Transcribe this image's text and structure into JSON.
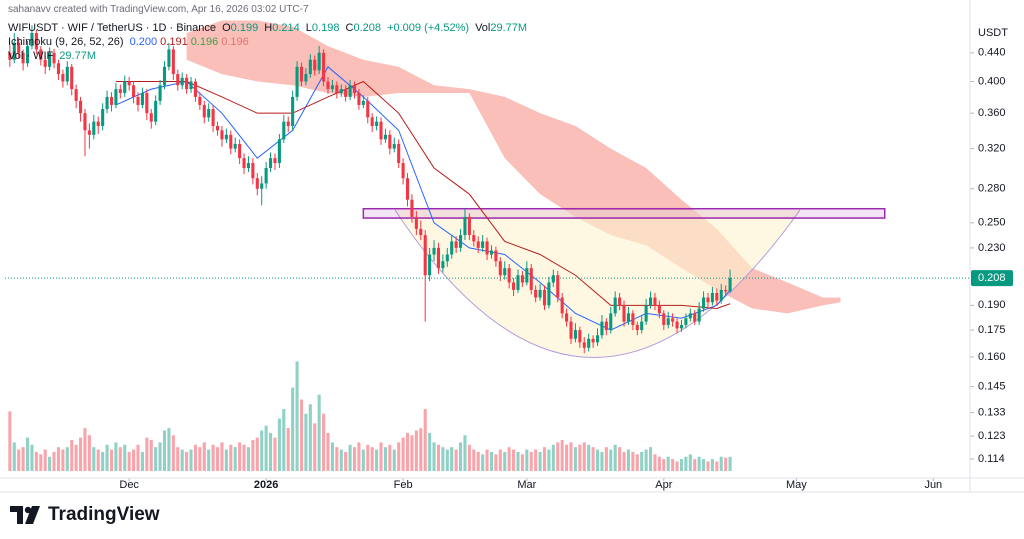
{
  "chart_data": {
    "type": "candlestick",
    "watermark": "sahanavv created with TradingView.com, Apr 16, 2026 03:02 UTC-7",
    "symbol": "WIFUSDT · WIF / TetherUS · 1D · Binance",
    "ohlc_labels": [
      "O",
      "H",
      "L",
      "C"
    ],
    "change": "+0.009 (+4.52%)",
    "vol_short": "Vol",
    "volume_title": "Vol · WIF",
    "volume_label": "29.77M",
    "currency": "USDT",
    "brand": "TradingView",
    "log_scale": true,
    "grid": false,
    "up_color": "#089981",
    "down_color": "#f23645",
    "xlim": [
      -1.1,
      217.3
    ],
    "xticks": [
      {
        "value": 27,
        "label": "Dec"
      },
      {
        "value": 58,
        "label": "2026"
      },
      {
        "value": 89,
        "label": "Feb"
      },
      {
        "value": 117,
        "label": "Mar"
      },
      {
        "value": 148,
        "label": "Apr"
      },
      {
        "value": 178,
        "label": "May"
      },
      {
        "value": 209,
        "label": "Jun"
      }
    ],
    "ylim": [
      0.107,
      0.499
    ],
    "yticks": [
      {
        "value": 0.44,
        "label": "0.440"
      },
      {
        "value": 0.4,
        "label": "0.400"
      },
      {
        "value": 0.36,
        "label": "0.360"
      },
      {
        "value": 0.32,
        "label": "0.320"
      },
      {
        "value": 0.28,
        "label": "0.280"
      },
      {
        "value": 0.25,
        "label": "0.250"
      },
      {
        "value": 0.23,
        "label": "0.230"
      },
      {
        "value": 0.19,
        "label": "0.190"
      },
      0.175,
      {
        "value": 0.16,
        "label": "0.160"
      },
      0.145,
      0.133,
      0.123,
      0.114
    ],
    "volume_lim": [
      0,
      300
    ],
    "candles": [
      [
        0.44,
        0.452,
        0.42,
        0.43
      ],
      [
        0.43,
        0.47,
        0.425,
        0.455
      ],
      [
        0.455,
        0.462,
        0.432,
        0.44
      ],
      [
        0.44,
        0.445,
        0.415,
        0.425
      ],
      [
        0.425,
        0.458,
        0.42,
        0.45
      ],
      [
        0.45,
        0.482,
        0.445,
        0.47
      ],
      [
        0.47,
        0.475,
        0.438,
        0.445
      ],
      [
        0.445,
        0.45,
        0.422,
        0.43
      ],
      [
        0.43,
        0.436,
        0.41,
        0.42
      ],
      [
        0.42,
        0.448,
        0.415,
        0.44
      ],
      [
        0.44,
        0.446,
        0.418,
        0.425
      ],
      [
        0.425,
        0.43,
        0.402,
        0.41
      ],
      [
        0.41,
        0.416,
        0.392,
        0.4
      ],
      [
        0.4,
        0.428,
        0.395,
        0.42
      ],
      [
        0.42,
        0.424,
        0.382,
        0.39
      ],
      [
        0.39,
        0.396,
        0.366,
        0.375
      ],
      [
        0.375,
        0.38,
        0.35,
        0.36
      ],
      [
        0.36,
        0.365,
        0.312,
        0.34
      ],
      [
        0.34,
        0.348,
        0.32,
        0.335
      ],
      [
        0.335,
        0.358,
        0.33,
        0.35
      ],
      [
        0.35,
        0.356,
        0.336,
        0.345
      ],
      [
        0.345,
        0.372,
        0.34,
        0.365
      ],
      [
        0.365,
        0.388,
        0.36,
        0.38
      ],
      [
        0.38,
        0.386,
        0.362,
        0.37
      ],
      [
        0.37,
        0.398,
        0.366,
        0.39
      ],
      [
        0.39,
        0.396,
        0.378,
        0.385
      ],
      [
        0.385,
        0.408,
        0.38,
        0.4
      ],
      [
        0.4,
        0.406,
        0.388,
        0.395
      ],
      [
        0.395,
        0.4,
        0.372,
        0.38
      ],
      [
        0.38,
        0.386,
        0.362,
        0.37
      ],
      [
        0.37,
        0.392,
        0.366,
        0.385
      ],
      [
        0.385,
        0.39,
        0.352,
        0.36
      ],
      [
        0.36,
        0.365,
        0.342,
        0.35
      ],
      [
        0.35,
        0.382,
        0.346,
        0.375
      ],
      [
        0.375,
        0.402,
        0.37,
        0.395
      ],
      [
        0.395,
        0.428,
        0.39,
        0.42
      ],
      [
        0.42,
        0.455,
        0.415,
        0.445
      ],
      [
        0.445,
        0.45,
        0.402,
        0.41
      ],
      [
        0.41,
        0.416,
        0.388,
        0.395
      ],
      [
        0.395,
        0.412,
        0.39,
        0.405
      ],
      [
        0.405,
        0.41,
        0.384,
        0.39
      ],
      [
        0.39,
        0.406,
        0.385,
        0.4
      ],
      [
        0.4,
        0.404,
        0.374,
        0.38
      ],
      [
        0.38,
        0.386,
        0.364,
        0.37
      ],
      [
        0.37,
        0.375,
        0.348,
        0.355
      ],
      [
        0.355,
        0.372,
        0.35,
        0.365
      ],
      [
        0.365,
        0.37,
        0.338,
        0.345
      ],
      [
        0.345,
        0.35,
        0.334,
        0.34
      ],
      [
        0.34,
        0.345,
        0.322,
        0.33
      ],
      [
        0.33,
        0.342,
        0.326,
        0.335
      ],
      [
        0.335,
        0.34,
        0.314,
        0.32
      ],
      [
        0.32,
        0.332,
        0.316,
        0.325
      ],
      [
        0.325,
        0.33,
        0.304,
        0.31
      ],
      [
        0.31,
        0.315,
        0.294,
        0.3
      ],
      [
        0.3,
        0.312,
        0.296,
        0.305
      ],
      [
        0.305,
        0.31,
        0.284,
        0.29
      ],
      [
        0.29,
        0.295,
        0.274,
        0.28
      ],
      [
        0.28,
        0.292,
        0.265,
        0.285
      ],
      [
        0.285,
        0.306,
        0.28,
        0.3
      ],
      [
        0.3,
        0.316,
        0.296,
        0.31
      ],
      [
        0.31,
        0.315,
        0.298,
        0.305
      ],
      [
        0.305,
        0.336,
        0.3,
        0.33
      ],
      [
        0.33,
        0.358,
        0.326,
        0.35
      ],
      [
        0.35,
        0.356,
        0.338,
        0.345
      ],
      [
        0.345,
        0.388,
        0.34,
        0.38
      ],
      [
        0.38,
        0.428,
        0.375,
        0.42
      ],
      [
        0.42,
        0.426,
        0.394,
        0.4
      ],
      [
        0.4,
        0.418,
        0.395,
        0.41
      ],
      [
        0.41,
        0.438,
        0.405,
        0.43
      ],
      [
        0.43,
        0.436,
        0.408,
        0.415
      ],
      [
        0.415,
        0.45,
        0.41,
        0.44
      ],
      [
        0.44,
        0.445,
        0.394,
        0.4
      ],
      [
        0.4,
        0.406,
        0.384,
        0.39
      ],
      [
        0.39,
        0.402,
        0.386,
        0.395
      ],
      [
        0.395,
        0.4,
        0.378,
        0.385
      ],
      [
        0.385,
        0.396,
        0.38,
        0.39
      ],
      [
        0.39,
        0.395,
        0.374,
        0.38
      ],
      [
        0.38,
        0.402,
        0.376,
        0.395
      ],
      [
        0.395,
        0.4,
        0.378,
        0.385
      ],
      [
        0.385,
        0.39,
        0.364,
        0.37
      ],
      [
        0.37,
        0.382,
        0.366,
        0.375
      ],
      [
        0.375,
        0.38,
        0.348,
        0.355
      ],
      [
        0.355,
        0.36,
        0.338,
        0.345
      ],
      [
        0.345,
        0.356,
        0.34,
        0.35
      ],
      [
        0.35,
        0.355,
        0.324,
        0.33
      ],
      [
        0.33,
        0.342,
        0.326,
        0.335
      ],
      [
        0.335,
        0.34,
        0.314,
        0.32
      ],
      [
        0.32,
        0.332,
        0.316,
        0.325
      ],
      [
        0.325,
        0.33,
        0.3,
        0.305
      ],
      [
        0.305,
        0.31,
        0.284,
        0.29
      ],
      [
        0.29,
        0.295,
        0.264,
        0.27
      ],
      [
        0.27,
        0.275,
        0.25,
        0.255
      ],
      [
        0.255,
        0.26,
        0.24,
        0.245
      ],
      [
        0.245,
        0.252,
        0.236,
        0.24
      ],
      [
        0.24,
        0.244,
        0.18,
        0.21
      ],
      [
        0.21,
        0.23,
        0.206,
        0.225
      ],
      [
        0.225,
        0.236,
        0.22,
        0.23
      ],
      [
        0.23,
        0.234,
        0.211,
        0.215
      ],
      [
        0.215,
        0.225,
        0.212,
        0.22
      ],
      [
        0.22,
        0.23,
        0.216,
        0.225
      ],
      [
        0.225,
        0.24,
        0.222,
        0.235
      ],
      [
        0.235,
        0.239,
        0.226,
        0.23
      ],
      [
        0.23,
        0.245,
        0.227,
        0.24
      ],
      [
        0.24,
        0.262,
        0.236,
        0.255
      ],
      [
        0.255,
        0.258,
        0.236,
        0.24
      ],
      [
        0.24,
        0.244,
        0.231,
        0.235
      ],
      [
        0.235,
        0.239,
        0.226,
        0.23
      ],
      [
        0.23,
        0.24,
        0.227,
        0.235
      ],
      [
        0.235,
        0.238,
        0.221,
        0.225
      ],
      [
        0.225,
        0.232,
        0.222,
        0.228
      ],
      [
        0.228,
        0.231,
        0.216,
        0.22
      ],
      [
        0.22,
        0.223,
        0.206,
        0.21
      ],
      [
        0.21,
        0.22,
        0.207,
        0.215
      ],
      [
        0.215,
        0.218,
        0.201,
        0.205
      ],
      [
        0.205,
        0.208,
        0.196,
        0.2
      ],
      [
        0.2,
        0.214,
        0.198,
        0.21
      ],
      [
        0.21,
        0.213,
        0.202,
        0.205
      ],
      [
        0.205,
        0.22,
        0.203,
        0.215
      ],
      [
        0.215,
        0.218,
        0.197,
        0.2
      ],
      [
        0.2,
        0.203,
        0.192,
        0.195
      ],
      [
        0.195,
        0.204,
        0.193,
        0.2
      ],
      [
        0.2,
        0.203,
        0.187,
        0.19
      ],
      [
        0.19,
        0.209,
        0.188,
        0.205
      ],
      [
        0.205,
        0.214,
        0.202,
        0.21
      ],
      [
        0.21,
        0.213,
        0.192,
        0.195
      ],
      [
        0.195,
        0.198,
        0.182,
        0.185
      ],
      [
        0.185,
        0.188,
        0.177,
        0.18
      ],
      [
        0.18,
        0.183,
        0.167,
        0.17
      ],
      [
        0.17,
        0.179,
        0.168,
        0.175
      ],
      [
        0.175,
        0.177,
        0.165,
        0.168
      ],
      [
        0.168,
        0.171,
        0.162,
        0.165
      ],
      [
        0.165,
        0.173,
        0.163,
        0.17
      ],
      [
        0.17,
        0.172,
        0.165,
        0.168
      ],
      [
        0.168,
        0.176,
        0.166,
        0.172
      ],
      [
        0.172,
        0.184,
        0.17,
        0.18
      ],
      [
        0.18,
        0.182,
        0.172,
        0.175
      ],
      [
        0.175,
        0.189,
        0.173,
        0.185
      ],
      [
        0.185,
        0.199,
        0.183,
        0.195
      ],
      [
        0.195,
        0.198,
        0.187,
        0.19
      ],
      [
        0.19,
        0.193,
        0.177,
        0.18
      ],
      [
        0.18,
        0.189,
        0.178,
        0.185
      ],
      [
        0.185,
        0.187,
        0.175,
        0.178
      ],
      [
        0.178,
        0.18,
        0.172,
        0.175
      ],
      [
        0.175,
        0.184,
        0.173,
        0.18
      ],
      [
        0.18,
        0.194,
        0.178,
        0.19
      ],
      [
        0.19,
        0.199,
        0.188,
        0.195
      ],
      [
        0.195,
        0.198,
        0.187,
        0.19
      ],
      [
        0.19,
        0.193,
        0.182,
        0.185
      ],
      [
        0.185,
        0.187,
        0.175,
        0.178
      ],
      [
        0.178,
        0.186,
        0.176,
        0.182
      ],
      [
        0.182,
        0.185,
        0.177,
        0.18
      ],
      [
        0.18,
        0.182,
        0.173,
        0.176
      ],
      [
        0.176,
        0.181,
        0.174,
        0.178
      ],
      [
        0.178,
        0.185,
        0.176,
        0.182
      ],
      [
        0.182,
        0.188,
        0.18,
        0.185
      ],
      [
        0.185,
        0.187,
        0.178,
        0.18
      ],
      [
        0.18,
        0.192,
        0.178,
        0.188
      ],
      [
        0.188,
        0.199,
        0.186,
        0.195
      ],
      [
        0.195,
        0.198,
        0.189,
        0.192
      ],
      [
        0.192,
        0.202,
        0.19,
        0.198
      ],
      [
        0.198,
        0.201,
        0.19,
        0.193
      ],
      [
        0.193,
        0.204,
        0.191,
        0.2
      ],
      [
        0.2,
        0.203,
        0.196,
        0.199
      ],
      [
        0.199,
        0.214,
        0.198,
        0.208
      ]
    ],
    "volumes": [
      125,
      60,
      45,
      50,
      70,
      55,
      40,
      35,
      45,
      30,
      40,
      50,
      45,
      50,
      65,
      55,
      70,
      90,
      75,
      50,
      45,
      40,
      55,
      45,
      60,
      50,
      55,
      40,
      45,
      55,
      40,
      70,
      65,
      50,
      60,
      85,
      90,
      75,
      50,
      45,
      40,
      45,
      55,
      50,
      60,
      45,
      55,
      50,
      60,
      45,
      55,
      50,
      60,
      55,
      50,
      65,
      70,
      85,
      95,
      80,
      70,
      110,
      130,
      90,
      175,
      230,
      150,
      120,
      140,
      100,
      160,
      120,
      80,
      60,
      50,
      45,
      40,
      55,
      50,
      60,
      45,
      55,
      50,
      45,
      60,
      50,
      55,
      45,
      60,
      70,
      80,
      75,
      85,
      90,
      130,
      80,
      60,
      55,
      50,
      45,
      50,
      45,
      60,
      75,
      55,
      45,
      40,
      35,
      45,
      40,
      35,
      45,
      40,
      50,
      45,
      40,
      35,
      45,
      40,
      45,
      40,
      50,
      45,
      55,
      60,
      65,
      55,
      60,
      50,
      55,
      60,
      55,
      50,
      45,
      40,
      50,
      45,
      55,
      50,
      40,
      45,
      40,
      35,
      40,
      45,
      50,
      35,
      30,
      25,
      30,
      25,
      20,
      25,
      30,
      35,
      25,
      30,
      25,
      20,
      25,
      20,
      30,
      28,
      29.77
    ],
    "ichimoku": {
      "label": "Ichimoku (9, 26, 52, 26)",
      "legend": [
        {
          "value": 0.2,
          "label": "0.200"
        },
        0.191,
        0.196,
        0.196
      ],
      "legend_colors": [
        "#2962ff",
        "#b71c1c",
        "#43a047",
        "#e57373"
      ],
      "conversion_color": "#2962ff",
      "base_color": "#b71c1c",
      "cloud_color": "#f7a49a",
      "x": [
        24,
        32,
        40,
        48,
        56,
        64,
        72,
        80,
        88,
        96,
        104,
        112,
        120,
        128,
        136,
        144,
        152,
        160,
        163
      ],
      "conversion": [
        0.37,
        0.39,
        0.4,
        0.36,
        0.31,
        0.34,
        0.42,
        0.38,
        0.34,
        0.25,
        0.23,
        0.225,
        0.205,
        0.185,
        0.175,
        0.185,
        0.182,
        0.19,
        0.2
      ],
      "base": [
        0.4,
        0.4,
        0.4,
        0.38,
        0.36,
        0.36,
        0.38,
        0.4,
        0.36,
        0.3,
        0.275,
        0.235,
        0.225,
        0.21,
        0.19,
        0.19,
        0.19,
        0.188,
        0.191
      ],
      "cloud": {
        "x": [
          40,
          48,
          56,
          64,
          72,
          80,
          88,
          96,
          104,
          112,
          120,
          128,
          136,
          144,
          152,
          160,
          168,
          176,
          184,
          188
        ],
        "top": [
          0.47,
          0.49,
          0.49,
          0.48,
          0.45,
          0.43,
          0.42,
          0.395,
          0.39,
          0.38,
          0.36,
          0.345,
          0.32,
          0.3,
          0.27,
          0.245,
          0.215,
          0.205,
          0.195,
          0.195
        ],
        "bottom": [
          0.43,
          0.41,
          0.4,
          0.395,
          0.385,
          0.38,
          0.385,
          0.385,
          0.385,
          0.31,
          0.275,
          0.255,
          0.24,
          0.232,
          0.215,
          0.2,
          0.188,
          0.185,
          0.19,
          0.192
        ]
      }
    },
    "annotation": {
      "x": [
        80,
        198
      ],
      "y": [
        0.254,
        0.262
      ],
      "color": "#9c27b0"
    }
  }
}
